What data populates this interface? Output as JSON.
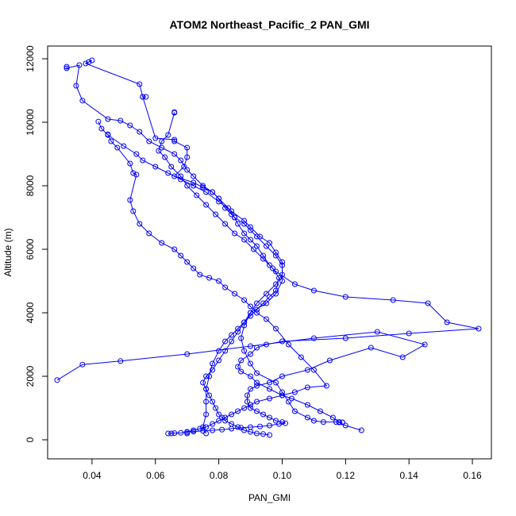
{
  "chart_data": {
    "type": "scatter",
    "title": "ATOM2 Northeast_Pacific_2 PAN_GMI",
    "xlabel": "PAN_GMI",
    "ylabel": "Altitude (m)",
    "xlim": [
      0.026,
      0.166
    ],
    "ylim": [
      -600,
      12400
    ],
    "x_ticks": [
      0.04,
      0.06,
      0.08,
      0.1,
      0.12,
      0.14,
      0.16
    ],
    "x_tick_labels": [
      "0.04",
      "0.06",
      "0.08",
      "0.10",
      "0.12",
      "0.14",
      "0.16"
    ],
    "y_ticks": [
      0,
      2000,
      4000,
      6000,
      8000,
      10000,
      12000
    ],
    "y_tick_labels": [
      "0",
      "2000",
      "4000",
      "6000",
      "8000",
      "10000",
      "12000"
    ],
    "grid": false,
    "color": "#0000ff",
    "series": [
      {
        "x": [
          0.04,
          0.039,
          0.038,
          0.055,
          0.056,
          0.057,
          0.056,
          0.06,
          0.066,
          0.066,
          0.07,
          0.07,
          0.069,
          0.066,
          0.072,
          0.075,
          0.078,
          0.08,
          0.083,
          0.085,
          0.088,
          0.09,
          0.092,
          0.095,
          0.098,
          0.1,
          0.1,
          0.098,
          0.095,
          0.09,
          0.088,
          0.087,
          0.088,
          0.09,
          0.092,
          0.098,
          0.1,
          0.102,
          0.104,
          0.108,
          0.11,
          0.113,
          0.117,
          0.118,
          0.119,
          0.118,
          0.119
        ],
        "y": [
          11950,
          11900,
          11850,
          11200,
          10800,
          10800,
          10800,
          9500,
          9450,
          9400,
          9200,
          8900,
          8600,
          8300,
          8100,
          7950,
          7800,
          7600,
          7300,
          7000,
          6800,
          6600,
          6400,
          6100,
          5800,
          5500,
          5000,
          4600,
          4300,
          4000,
          3600,
          3200,
          2800,
          2400,
          2100,
          1800,
          1500,
          1200,
          900,
          700,
          600,
          560,
          560,
          550,
          550,
          560,
          550
        ]
      },
      {
        "x": [
          0.032,
          0.032,
          0.036,
          0.035,
          0.037,
          0.045,
          0.049,
          0.052,
          0.055,
          0.058,
          0.062,
          0.066,
          0.068,
          0.07,
          0.072,
          0.075,
          0.078,
          0.08,
          0.082,
          0.084,
          0.085,
          0.085,
          0.086,
          0.088,
          0.09,
          0.092,
          0.094,
          0.096,
          0.098,
          0.104,
          0.11,
          0.12,
          0.135,
          0.146,
          0.152,
          0.162,
          0.14,
          0.12,
          0.1,
          0.095,
          0.092,
          0.09,
          0.087,
          0.086,
          0.087,
          0.09,
          0.092,
          0.096,
          0.1,
          0.103,
          0.108,
          0.112,
          0.116,
          0.118,
          0.12,
          0.125
        ],
        "y": [
          11750,
          11700,
          11800,
          11150,
          10680,
          10100,
          10050,
          9900,
          9700,
          9400,
          9200,
          9000,
          8800,
          8500,
          8300,
          8000,
          7800,
          7600,
          7300,
          7100,
          7000,
          7000,
          6800,
          6500,
          6300,
          6100,
          5800,
          5500,
          5300,
          4900,
          4700,
          4500,
          4400,
          4300,
          3700,
          3500,
          3350,
          3200,
          3100,
          3000,
          2900,
          2700,
          2500,
          2300,
          2150,
          2000,
          1800,
          1600,
          1400,
          1300,
          1100,
          900,
          700,
          550,
          450,
          300
        ]
      },
      {
        "x": [
          0.029,
          0.037,
          0.049,
          0.07,
          0.09,
          0.11,
          0.13,
          0.145,
          0.138,
          0.128,
          0.115,
          0.108,
          0.1,
          0.096,
          0.092,
          0.09,
          0.089,
          0.089,
          0.09,
          0.092,
          0.094,
          0.096,
          0.098,
          0.1,
          0.101,
          0.099,
          0.096,
          0.093,
          0.09,
          0.087,
          0.084,
          0.081,
          0.078,
          0.075,
          0.072,
          0.07,
          0.068,
          0.066,
          0.064,
          0.065
        ],
        "y": [
          1880,
          2370,
          2480,
          2700,
          2950,
          3200,
          3400,
          3000,
          2600,
          2900,
          2500,
          2200,
          2000,
          1800,
          1700,
          1600,
          1400,
          1200,
          1000,
          900,
          800,
          700,
          600,
          560,
          520,
          500,
          450,
          420,
          400,
          380,
          350,
          320,
          300,
          280,
          260,
          240,
          220,
          210,
          200,
          200
        ]
      },
      {
        "x": [
          0.042,
          0.043,
          0.045,
          0.05,
          0.054,
          0.056,
          0.06,
          0.064,
          0.068,
          0.072,
          0.076,
          0.08,
          0.084,
          0.088,
          0.09,
          0.093,
          0.096,
          0.098,
          0.1,
          0.1,
          0.098,
          0.095,
          0.092,
          0.09,
          0.088,
          0.086,
          0.084,
          0.082,
          0.08,
          0.078,
          0.076,
          0.075,
          0.076,
          0.077,
          0.078,
          0.079,
          0.08,
          0.081,
          0.082,
          0.084,
          0.086,
          0.088,
          0.09,
          0.092,
          0.094,
          0.096
        ],
        "y": [
          10020,
          9800,
          9600,
          9250,
          9000,
          8800,
          8600,
          8400,
          8200,
          8000,
          7800,
          7500,
          7200,
          6900,
          6700,
          6400,
          6200,
          5900,
          5600,
          5200,
          4900,
          4600,
          4300,
          4000,
          3700,
          3400,
          3100,
          2800,
          2500,
          2200,
          2000,
          1800,
          1600,
          1400,
          1200,
          1000,
          800,
          700,
          600,
          500,
          400,
          300,
          250,
          200,
          180,
          150
        ]
      },
      {
        "x": [
          0.045,
          0.046,
          0.048,
          0.052,
          0.053,
          0.054,
          0.052,
          0.053,
          0.055,
          0.058,
          0.062,
          0.066,
          0.068,
          0.07,
          0.072,
          0.074,
          0.077,
          0.08,
          0.082,
          0.085,
          0.088,
          0.09,
          0.092,
          0.095,
          0.098,
          0.102,
          0.106,
          0.11,
          0.114,
          0.108,
          0.104,
          0.1,
          0.096,
          0.092,
          0.09,
          0.088,
          0.086,
          0.084,
          0.082,
          0.08,
          0.078,
          0.076,
          0.074,
          0.072,
          0.07,
          0.07
        ],
        "y": [
          9620,
          9400,
          9200,
          8700,
          8400,
          8350,
          7550,
          7200,
          6800,
          6500,
          6200,
          6000,
          5800,
          5600,
          5400,
          5200,
          5100,
          5000,
          4800,
          4600,
          4400,
          4200,
          4000,
          3800,
          3500,
          3000,
          2600,
          2200,
          1700,
          1650,
          1500,
          1400,
          1300,
          1200,
          1100,
          1000,
          900,
          800,
          700,
          600,
          500,
          400,
          350,
          300,
          250,
          200
        ]
      },
      {
        "x": [
          0.066,
          0.066,
          0.064,
          0.062,
          0.061,
          0.063,
          0.065,
          0.068,
          0.07,
          0.073,
          0.076,
          0.079,
          0.082,
          0.085,
          0.088,
          0.091,
          0.094,
          0.097,
          0.099,
          0.098,
          0.096,
          0.094,
          0.092,
          0.09,
          0.088,
          0.086,
          0.084,
          0.082,
          0.08,
          0.078,
          0.077,
          0.076,
          0.076,
          0.076,
          0.075,
          0.076
        ],
        "y": [
          10320,
          10300,
          9600,
          9400,
          9100,
          8900,
          8600,
          8300,
          8000,
          7700,
          7400,
          7100,
          6800,
          6500,
          6300,
          6000,
          5700,
          5400,
          5100,
          4700,
          4500,
          4300,
          4100,
          3900,
          3700,
          3500,
          3300,
          3100,
          2800,
          2400,
          2000,
          1600,
          1200,
          800,
          400,
          200
        ]
      }
    ]
  }
}
